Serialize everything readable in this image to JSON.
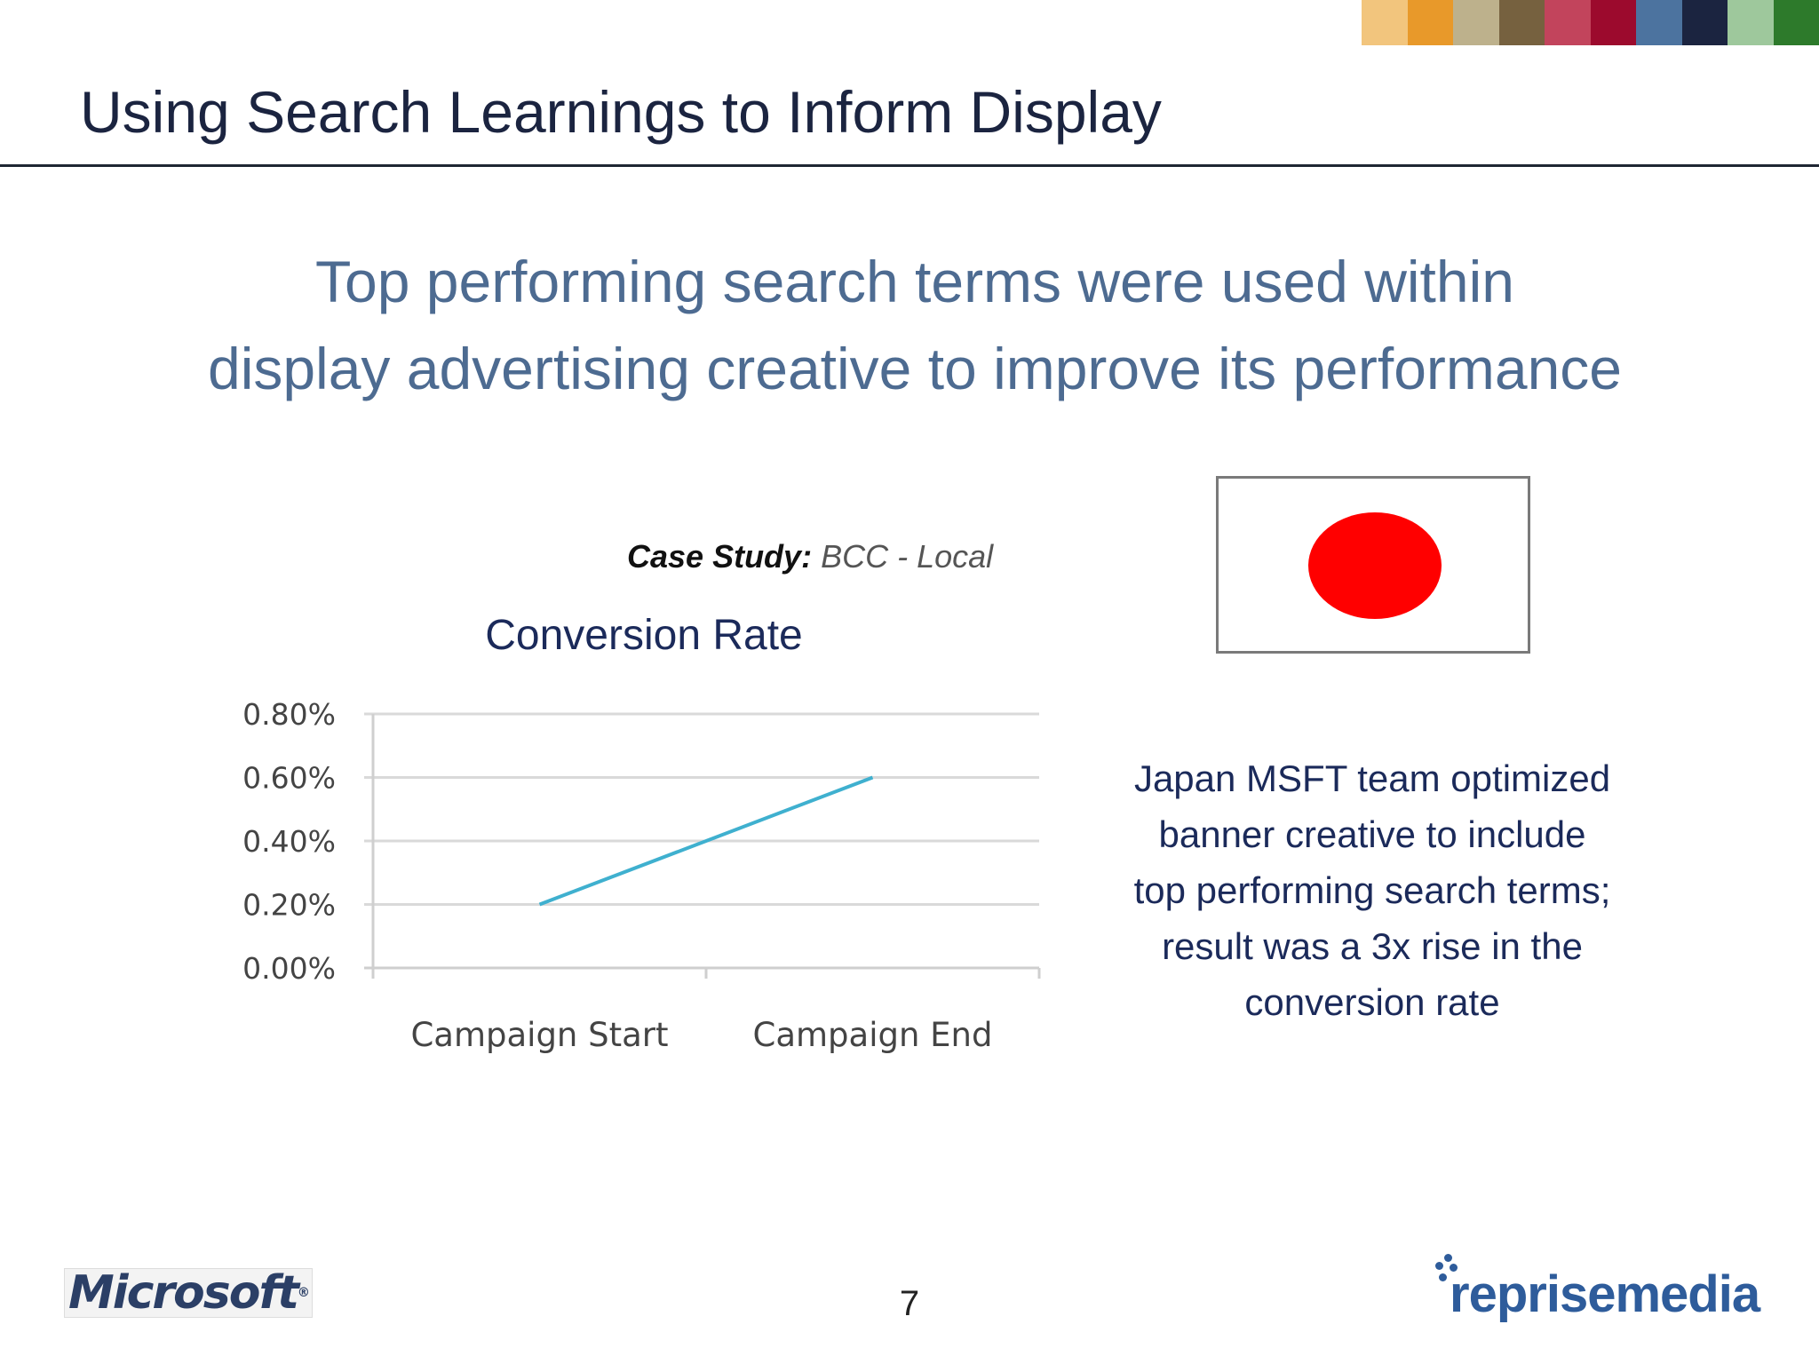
{
  "header": {
    "title": "Using Search Learnings to Inform Display",
    "strip_colors": [
      "#f2c57d",
      "#e8992a",
      "#bdb18c",
      "#76613f",
      "#c2445c",
      "#9c0a2d",
      "#4c739f",
      "#1b2440",
      "#9ec89c",
      "#2d7a2b"
    ]
  },
  "headline": {
    "line1": "Top performing search terms were used within",
    "line2": "display advertising creative to improve its performance"
  },
  "case_study": {
    "label": "Case Study:",
    "value": "BCC - Local"
  },
  "chart_data": {
    "type": "line",
    "title": "Conversion Rate",
    "categories": [
      "Campaign Start",
      "Campaign End"
    ],
    "series": [
      {
        "values": [
          0.2,
          0.6
        ],
        "color": "#3fb0cf"
      }
    ],
    "y_ticks": [
      "0.80%",
      "0.60%",
      "0.40%",
      "0.20%",
      "0.00%"
    ],
    "ylim": [
      0,
      0.8
    ],
    "grid": true,
    "legend": "none"
  },
  "flag": {
    "icon": "japan-flag-icon",
    "disc_color": "#ff0000"
  },
  "side_note": {
    "lines": [
      "Japan MSFT team optimized",
      "banner creative to include",
      "top performing search terms;",
      "result was a 3x rise in the",
      "conversion rate"
    ]
  },
  "footer": {
    "left_logo": "Microsoft",
    "page_number": "7",
    "right_logo": "reprisemedia"
  }
}
